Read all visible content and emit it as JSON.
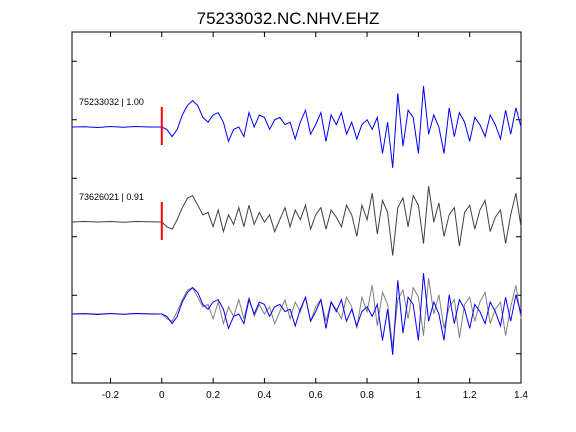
{
  "chart_data": {
    "type": "line",
    "title": "75233032.NC.NHV.EHZ",
    "xlabel": "",
    "ylabel": "",
    "xlim": [
      -0.35,
      1.4
    ],
    "xticks": [
      -0.2,
      0,
      0.2,
      0.4,
      0.6,
      0.8,
      1,
      1.2,
      1.4
    ],
    "xtick_labels": [
      "-0.2",
      "0",
      "0.2",
      "0.4",
      "0.6",
      "0.8",
      "1",
      "1.2",
      "1.4"
    ],
    "y_tick_count": 6,
    "grid": false,
    "pick_time": 0,
    "colors": {
      "primary": "#0000ff",
      "secondary": "#404040",
      "pick": "#ff0000",
      "overlay_secondary": "#808080"
    },
    "traces": [
      {
        "label": "75233032 | 1.00",
        "color": "#0000ff",
        "pick": true,
        "points": [
          [
            -0.35,
            0
          ],
          [
            -0.3,
            0.005
          ],
          [
            -0.25,
            -0.01
          ],
          [
            -0.2,
            0.01
          ],
          [
            -0.15,
            -0.005
          ],
          [
            -0.1,
            0.01
          ],
          [
            -0.05,
            0
          ],
          [
            0,
            0
          ],
          [
            0.02,
            -0.05
          ],
          [
            0.04,
            -0.2
          ],
          [
            0.06,
            -0.05
          ],
          [
            0.08,
            0.25
          ],
          [
            0.1,
            0.45
          ],
          [
            0.12,
            0.55
          ],
          [
            0.14,
            0.45
          ],
          [
            0.16,
            0.2
          ],
          [
            0.18,
            0.1
          ],
          [
            0.2,
            0.25
          ],
          [
            0.22,
            0.3
          ],
          [
            0.24,
            0.1
          ],
          [
            0.26,
            -0.3
          ],
          [
            0.28,
            -0.05
          ],
          [
            0.3,
            0.0
          ],
          [
            0.32,
            -0.2
          ],
          [
            0.34,
            0.3
          ],
          [
            0.36,
            0.0
          ],
          [
            0.38,
            0.25
          ],
          [
            0.4,
            0.2
          ],
          [
            0.42,
            -0.05
          ],
          [
            0.44,
            0.15
          ],
          [
            0.46,
            0.2
          ],
          [
            0.48,
            0.05
          ],
          [
            0.5,
            0.1
          ],
          [
            0.52,
            -0.25
          ],
          [
            0.54,
            0.1
          ],
          [
            0.56,
            0.35
          ],
          [
            0.58,
            -0.15
          ],
          [
            0.6,
            0.05
          ],
          [
            0.62,
            0.3
          ],
          [
            0.64,
            -0.3
          ],
          [
            0.66,
            0.25
          ],
          [
            0.68,
            0.05
          ],
          [
            0.7,
            0.3
          ],
          [
            0.72,
            -0.15
          ],
          [
            0.74,
            0.1
          ],
          [
            0.76,
            -0.25
          ],
          [
            0.78,
            0.05
          ],
          [
            0.8,
            0.15
          ],
          [
            0.82,
            -0.05
          ],
          [
            0.84,
            0.2
          ],
          [
            0.86,
            -0.55
          ],
          [
            0.88,
            0.1
          ],
          [
            0.9,
            -0.85
          ],
          [
            0.92,
            0.7
          ],
          [
            0.94,
            -0.4
          ],
          [
            0.96,
            0.35
          ],
          [
            0.98,
            0.2
          ],
          [
            1.0,
            -0.55
          ],
          [
            1.02,
            0.85
          ],
          [
            1.04,
            -0.15
          ],
          [
            1.06,
            0.25
          ],
          [
            1.08,
            0.0
          ],
          [
            1.1,
            -0.55
          ],
          [
            1.12,
            0.4
          ],
          [
            1.14,
            -0.2
          ],
          [
            1.16,
            0.3
          ],
          [
            1.18,
            0.1
          ],
          [
            1.2,
            -0.3
          ],
          [
            1.22,
            0.2
          ],
          [
            1.24,
            0.05
          ],
          [
            1.26,
            -0.2
          ],
          [
            1.28,
            0.25
          ],
          [
            1.3,
            0.05
          ],
          [
            1.32,
            -0.25
          ],
          [
            1.34,
            0.35
          ],
          [
            1.36,
            -0.15
          ],
          [
            1.38,
            0.4
          ],
          [
            1.4,
            0.0
          ]
        ]
      },
      {
        "label": "73626021 | 0.91",
        "color": "#404040",
        "pick": true,
        "points": [
          [
            -0.35,
            0
          ],
          [
            -0.3,
            0.01
          ],
          [
            -0.25,
            0.0
          ],
          [
            -0.2,
            0.01
          ],
          [
            -0.15,
            -0.005
          ],
          [
            -0.1,
            0.01
          ],
          [
            -0.05,
            0.005
          ],
          [
            0,
            0
          ],
          [
            0.02,
            -0.1
          ],
          [
            0.04,
            -0.15
          ],
          [
            0.06,
            0.05
          ],
          [
            0.08,
            0.3
          ],
          [
            0.1,
            0.5
          ],
          [
            0.12,
            0.55
          ],
          [
            0.14,
            0.35
          ],
          [
            0.16,
            0.15
          ],
          [
            0.18,
            0.2
          ],
          [
            0.2,
            -0.1
          ],
          [
            0.22,
            0.25
          ],
          [
            0.24,
            -0.2
          ],
          [
            0.26,
            0.15
          ],
          [
            0.28,
            -0.05
          ],
          [
            0.3,
            0.3
          ],
          [
            0.32,
            -0.1
          ],
          [
            0.34,
            0.35
          ],
          [
            0.36,
            -0.05
          ],
          [
            0.38,
            0.2
          ],
          [
            0.4,
            0.0
          ],
          [
            0.42,
            0.15
          ],
          [
            0.44,
            -0.2
          ],
          [
            0.46,
            0.05
          ],
          [
            0.48,
            0.3
          ],
          [
            0.5,
            -0.1
          ],
          [
            0.52,
            0.25
          ],
          [
            0.54,
            0.05
          ],
          [
            0.56,
            0.35
          ],
          [
            0.58,
            -0.15
          ],
          [
            0.6,
            0.15
          ],
          [
            0.62,
            0.3
          ],
          [
            0.64,
            -0.15
          ],
          [
            0.66,
            0.25
          ],
          [
            0.68,
            0.1
          ],
          [
            0.7,
            -0.1
          ],
          [
            0.72,
            0.35
          ],
          [
            0.74,
            0.15
          ],
          [
            0.76,
            -0.3
          ],
          [
            0.78,
            0.35
          ],
          [
            0.8,
            0.05
          ],
          [
            0.82,
            0.6
          ],
          [
            0.84,
            -0.25
          ],
          [
            0.86,
            0.45
          ],
          [
            0.88,
            0.2
          ],
          [
            0.9,
            -0.7
          ],
          [
            0.92,
            0.3
          ],
          [
            0.94,
            0.5
          ],
          [
            0.96,
            -0.1
          ],
          [
            0.98,
            0.55
          ],
          [
            1.0,
            0.35
          ],
          [
            1.02,
            -0.45
          ],
          [
            1.04,
            0.75
          ],
          [
            1.06,
            0.0
          ],
          [
            1.08,
            0.4
          ],
          [
            1.1,
            -0.3
          ],
          [
            1.12,
            0.15
          ],
          [
            1.14,
            0.3
          ],
          [
            1.16,
            -0.5
          ],
          [
            1.18,
            0.2
          ],
          [
            1.2,
            0.35
          ],
          [
            1.22,
            -0.15
          ],
          [
            1.24,
            0.25
          ],
          [
            1.26,
            0.45
          ],
          [
            1.28,
            -0.2
          ],
          [
            1.3,
            0.1
          ],
          [
            1.32,
            0.25
          ],
          [
            1.34,
            -0.45
          ],
          [
            1.36,
            0.15
          ],
          [
            1.38,
            0.6
          ],
          [
            1.4,
            -0.1
          ]
        ]
      }
    ]
  }
}
